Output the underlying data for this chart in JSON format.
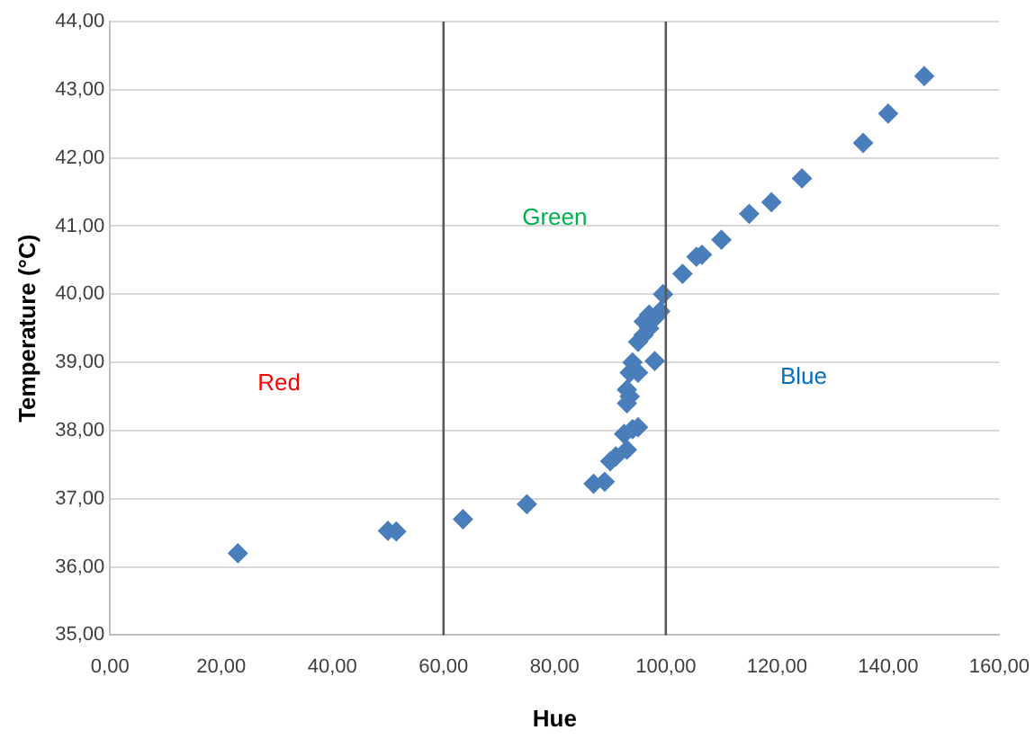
{
  "chart_data": {
    "type": "scatter",
    "xlabel": "Hue",
    "ylabel": "Temperature (°C)",
    "marker": "diamond",
    "grid": "y",
    "legend": false,
    "xlim": [
      0,
      160
    ],
    "ylim": [
      35,
      44
    ],
    "xticks": [
      {
        "value": 0,
        "label": "0,00"
      },
      {
        "value": 20,
        "label": "20,00"
      },
      {
        "value": 40,
        "label": "40,00"
      },
      {
        "value": 60,
        "label": "60,00"
      },
      {
        "value": 80,
        "label": "80,00"
      },
      {
        "value": 100,
        "label": "100,00"
      },
      {
        "value": 120,
        "label": "120,00"
      },
      {
        "value": 140,
        "label": "140,00"
      },
      {
        "value": 160,
        "label": "160,00"
      }
    ],
    "yticks": [
      {
        "value": 35,
        "label": "35,00"
      },
      {
        "value": 36,
        "label": "36,00"
      },
      {
        "value": 37,
        "label": "37,00"
      },
      {
        "value": 38,
        "label": "38,00"
      },
      {
        "value": 39,
        "label": "39,00"
      },
      {
        "value": 40,
        "label": "40,00"
      },
      {
        "value": 41,
        "label": "41,00"
      },
      {
        "value": 42,
        "label": "42,00"
      },
      {
        "value": 43,
        "label": "43,00"
      },
      {
        "value": 44,
        "label": "44,00"
      }
    ],
    "series": [
      {
        "color": "#4a7ebb",
        "x": [
          23,
          50,
          51.5,
          63.5,
          75,
          87,
          89,
          90,
          91,
          92.5,
          93,
          94,
          95,
          93,
          93.5,
          93,
          93.5,
          94,
          95,
          98,
          95,
          96,
          97,
          96,
          97,
          98,
          99,
          99.5,
          103,
          105.5,
          106.5,
          110,
          115,
          119,
          124.5,
          135.5,
          140,
          146.5
        ],
        "values": [
          36.2,
          36.53,
          36.52,
          36.7,
          36.92,
          37.22,
          37.25,
          37.55,
          37.62,
          37.95,
          37.72,
          38.02,
          38.05,
          38.4,
          38.5,
          38.6,
          38.85,
          39.0,
          38.85,
          39.02,
          39.3,
          39.4,
          39.5,
          39.6,
          39.7,
          39.65,
          39.75,
          40.0,
          40.3,
          40.55,
          40.58,
          40.8,
          41.18,
          41.35,
          41.7,
          42.22,
          42.65,
          43.2
        ]
      }
    ],
    "ref_lines": [
      {
        "axis": "x",
        "value": 60,
        "color": "#595959"
      },
      {
        "axis": "x",
        "value": 100,
        "color": "#595959"
      }
    ],
    "annotations": [
      "Red",
      "Green",
      "Blue"
    ]
  }
}
